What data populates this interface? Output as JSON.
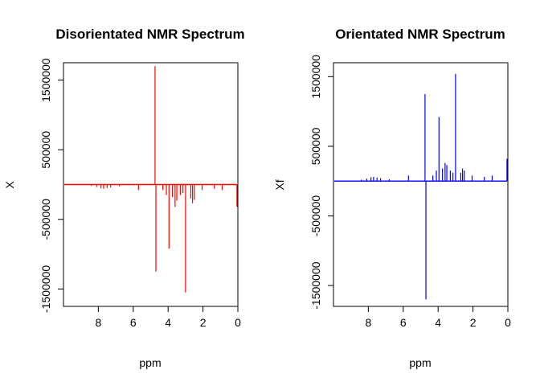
{
  "chart_data": [
    {
      "type": "line",
      "title": "Disorientated NMR Spectrum",
      "xlabel": "ppm",
      "ylabel": "X",
      "xlim": [
        10,
        0
      ],
      "ylim": [
        -1750000,
        1750000
      ],
      "x_ticks": [
        8,
        6,
        4,
        2,
        0
      ],
      "y_ticks": [
        -1500000,
        -500000,
        500000,
        1500000
      ],
      "x_tick_labels": [
        "8",
        "6",
        "4",
        "2",
        "0"
      ],
      "y_tick_labels": [
        "-1500000",
        "-500000",
        "500000",
        "1500000"
      ],
      "color": "#ff0000",
      "baseline": 0,
      "peaks": [
        {
          "ppm": 9.5,
          "value": -5000
        },
        {
          "ppm": 8.4,
          "value": -20000
        },
        {
          "ppm": 8.1,
          "value": -35000
        },
        {
          "ppm": 7.85,
          "value": -55000
        },
        {
          "ppm": 7.7,
          "value": -60000
        },
        {
          "ppm": 7.5,
          "value": -50000
        },
        {
          "ppm": 7.3,
          "value": -40000
        },
        {
          "ppm": 6.8,
          "value": -25000
        },
        {
          "ppm": 5.7,
          "value": -80000
        },
        {
          "ppm": 4.75,
          "value": 1700000
        },
        {
          "ppm": 4.7,
          "value": -1250000
        },
        {
          "ppm": 4.3,
          "value": -80000
        },
        {
          "ppm": 4.1,
          "value": -150000
        },
        {
          "ppm": 3.95,
          "value": -920000
        },
        {
          "ppm": 3.75,
          "value": -180000
        },
        {
          "ppm": 3.6,
          "value": -320000
        },
        {
          "ppm": 3.5,
          "value": -230000
        },
        {
          "ppm": 3.3,
          "value": -150000
        },
        {
          "ppm": 3.15,
          "value": -120000
        },
        {
          "ppm": 3.0,
          "value": -1550000
        },
        {
          "ppm": 2.7,
          "value": -200000
        },
        {
          "ppm": 2.6,
          "value": -270000
        },
        {
          "ppm": 2.5,
          "value": -220000
        },
        {
          "ppm": 2.05,
          "value": -80000
        },
        {
          "ppm": 1.35,
          "value": -60000
        },
        {
          "ppm": 0.9,
          "value": -80000
        },
        {
          "ppm": 0.05,
          "value": -320000
        }
      ]
    },
    {
      "type": "line",
      "title": "Orientated NMR Spectrum",
      "xlabel": "ppm",
      "ylabel": "Xf",
      "xlim": [
        10,
        0
      ],
      "ylim": [
        -1800000,
        1700000
      ],
      "x_ticks": [
        8,
        6,
        4,
        2,
        0
      ],
      "y_ticks": [
        -1500000,
        -500000,
        500000,
        1500000
      ],
      "x_tick_labels": [
        "8",
        "6",
        "4",
        "2",
        "0"
      ],
      "y_tick_labels": [
        "-1500000",
        "-500000",
        "500000",
        "1500000"
      ],
      "color": "#0000ff",
      "baseline": 0,
      "peaks": [
        {
          "ppm": 9.5,
          "value": 5000
        },
        {
          "ppm": 8.4,
          "value": 20000
        },
        {
          "ppm": 8.1,
          "value": 35000
        },
        {
          "ppm": 7.85,
          "value": 55000
        },
        {
          "ppm": 7.7,
          "value": 60000
        },
        {
          "ppm": 7.5,
          "value": 50000
        },
        {
          "ppm": 7.3,
          "value": 40000
        },
        {
          "ppm": 6.8,
          "value": 25000
        },
        {
          "ppm": 5.7,
          "value": 80000
        },
        {
          "ppm": 4.75,
          "value": 1250000
        },
        {
          "ppm": 4.7,
          "value": -1700000
        },
        {
          "ppm": 4.3,
          "value": 80000
        },
        {
          "ppm": 4.1,
          "value": 150000
        },
        {
          "ppm": 3.95,
          "value": 920000
        },
        {
          "ppm": 3.75,
          "value": 180000
        },
        {
          "ppm": 3.6,
          "value": 260000
        },
        {
          "ppm": 3.5,
          "value": 230000
        },
        {
          "ppm": 3.3,
          "value": 150000
        },
        {
          "ppm": 3.15,
          "value": 120000
        },
        {
          "ppm": 3.0,
          "value": 1540000
        },
        {
          "ppm": 2.7,
          "value": 120000
        },
        {
          "ppm": 2.6,
          "value": 180000
        },
        {
          "ppm": 2.5,
          "value": 150000
        },
        {
          "ppm": 2.05,
          "value": 80000
        },
        {
          "ppm": 1.35,
          "value": 60000
        },
        {
          "ppm": 0.9,
          "value": 80000
        },
        {
          "ppm": 0.05,
          "value": 320000
        }
      ]
    }
  ]
}
